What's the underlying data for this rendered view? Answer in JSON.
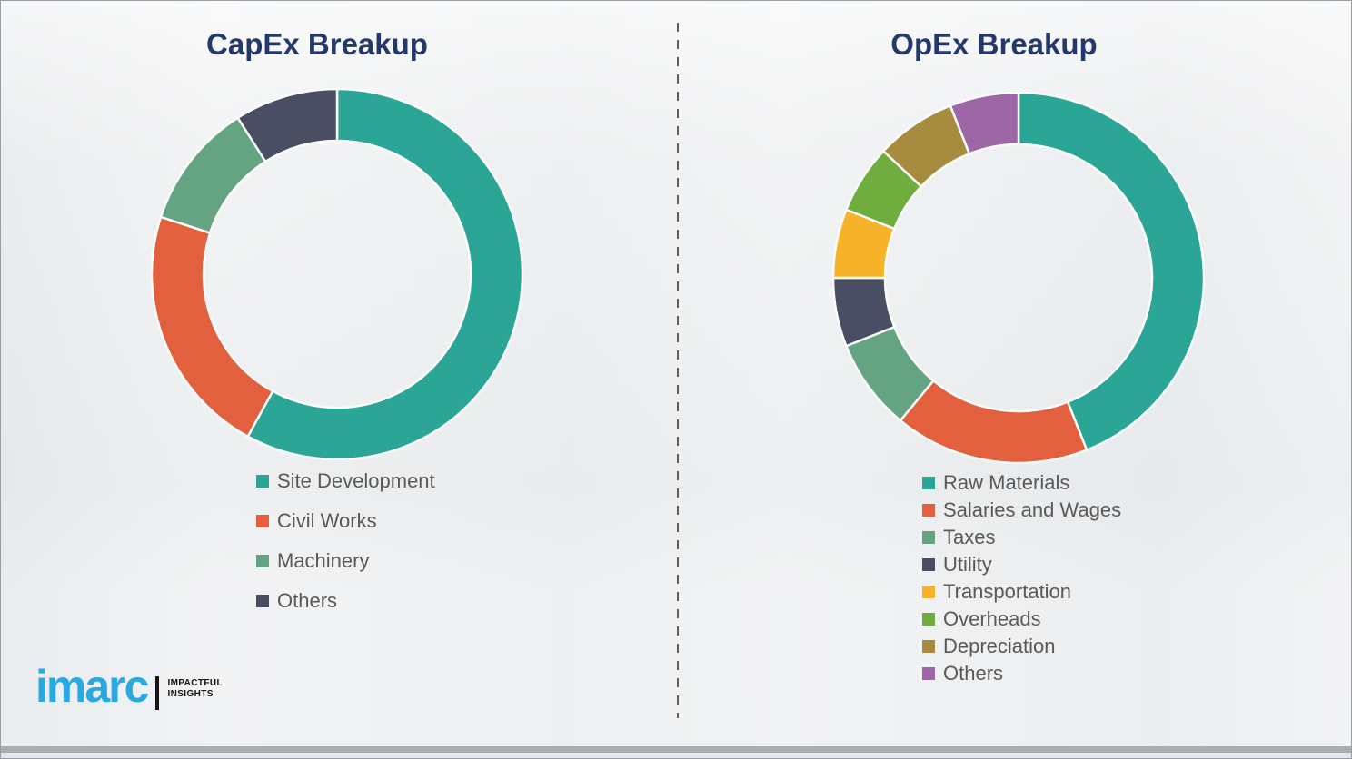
{
  "chart_data": [
    {
      "type": "pie",
      "donut": true,
      "title": "CapEx Breakup",
      "labels": [
        "Site Development",
        "Civil Works",
        "Machinery",
        "Others"
      ],
      "values": [
        58,
        22,
        11,
        9
      ],
      "colors": [
        "#2aa596",
        "#e2603e",
        "#65a483",
        "#4a4e63"
      ],
      "start_angle": "top",
      "direction": "clockwise",
      "legend_position": "below-left",
      "note": "percentages estimated from arc angles; no numeric labels shown in image"
    },
    {
      "type": "pie",
      "donut": true,
      "title": "OpEx Breakup",
      "labels": [
        "Raw Materials",
        "Salaries and Wages",
        "Taxes",
        "Utility",
        "Transportation",
        "Overheads",
        "Depreciation",
        "Others"
      ],
      "values": [
        44,
        17,
        8,
        6,
        6,
        6,
        7,
        6
      ],
      "colors": [
        "#2aa596",
        "#e2603e",
        "#65a483",
        "#4a4e63",
        "#f6b229",
        "#6fad3e",
        "#a78b3e",
        "#9d66a5"
      ],
      "start_angle": "top",
      "direction": "clockwise",
      "legend_position": "below-left",
      "note": "percentages estimated from arc angles; no numeric labels shown in image"
    }
  ],
  "logo": {
    "brand": "imarc",
    "tagline": [
      "IMPACTFUL",
      "INSIGHTS"
    ],
    "brand_color": "#29a9e1"
  }
}
